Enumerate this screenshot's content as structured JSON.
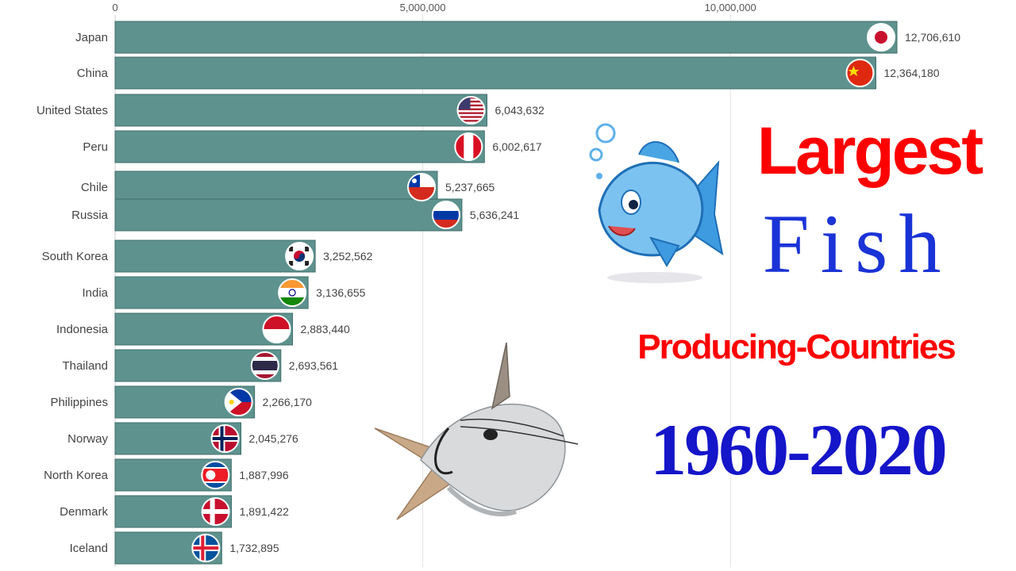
{
  "title": {
    "line1": "Largest",
    "line2": "Fish",
    "line3": "Producing-Countries",
    "line4": "1960-2020"
  },
  "chart_data": {
    "type": "bar",
    "orientation": "horizontal",
    "title": "Largest Fish Producing-Countries 1960-2020",
    "xlabel": "",
    "ylabel": "",
    "xlim": [
      0,
      12706610
    ],
    "x_ticks": [
      {
        "value": 0,
        "label": "0"
      },
      {
        "value": 5000000,
        "label": "5,000,000"
      },
      {
        "value": 10000000,
        "label": "10,000,000"
      }
    ],
    "grid": true,
    "legend": "none",
    "bar_color": "#5e928e",
    "categories": [
      "Japan",
      "China",
      "United States",
      "Peru",
      "Chile",
      "Russia",
      "South Korea",
      "India",
      "Indonesia",
      "Thailand",
      "Philippines",
      "Norway",
      "North Korea",
      "Denmark",
      "Iceland"
    ],
    "values": [
      12706610,
      12364180,
      6043632,
      6002617,
      5237665,
      5636241,
      3252562,
      3136655,
      2883440,
      2693561,
      2266170,
      2045276,
      1887996,
      1891422,
      1732895
    ],
    "value_labels": [
      "12,706,610",
      "12,364,180",
      "6,043,632",
      "6,002,617",
      "5,237,665",
      "5,636,241",
      "3,252,562",
      "3,136,655",
      "2,883,440",
      "2,693,561",
      "2,266,170",
      "2,045,276",
      "1,887,996",
      "1,891,422",
      "1,732,895"
    ],
    "flag_icons": [
      "flag-japan-icon",
      "flag-china-icon",
      "flag-usa-icon",
      "flag-peru-icon",
      "flag-chile-icon",
      "flag-russia-icon",
      "flag-south-korea-icon",
      "flag-india-icon",
      "flag-indonesia-icon",
      "flag-thailand-icon",
      "flag-philippines-icon",
      "flag-norway-icon",
      "flag-north-korea-icon",
      "flag-denmark-icon",
      "flag-iceland-icon"
    ]
  },
  "illustrations": [
    "cartoon-fish-icon",
    "catfish-icon"
  ],
  "colors": {
    "title_red": "#ff0000",
    "title_blue": "#1a33d6",
    "bar": "#5e928e"
  }
}
